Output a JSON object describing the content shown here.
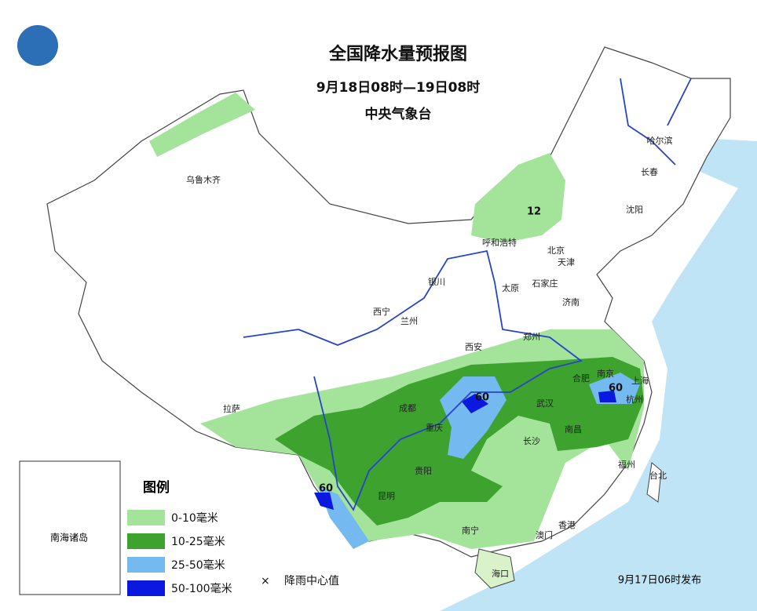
{
  "header": {
    "title": "全国降水量预报图",
    "period": "9月18日08时—19日08时",
    "issuer": "中央气象台"
  },
  "cities": [
    "乌鲁木齐",
    "哈尔滨",
    "长春",
    "沈阳",
    "呼和浩特",
    "北京",
    "天津",
    "石家庄",
    "太原",
    "济南",
    "银川",
    "西宁",
    "兰州",
    "郑州",
    "西安",
    "合肥",
    "南京",
    "上海",
    "杭州",
    "武汉",
    "成都",
    "重庆",
    "拉萨",
    "长沙",
    "南昌",
    "贵阳",
    "福州",
    "台北",
    "昆明",
    "南宁",
    "香港",
    "澳门",
    "海口"
  ],
  "rain_centers": [
    12,
    60,
    60,
    60
  ],
  "legend": {
    "title": "图例",
    "items": [
      "0-10毫米",
      "10-25毫米",
      "25-50毫米",
      "50-100毫米"
    ],
    "center_symbol": "×",
    "center_label": "降雨中心值"
  },
  "inset_label": "南海诸岛",
  "footer": "9月17日06时发布"
}
